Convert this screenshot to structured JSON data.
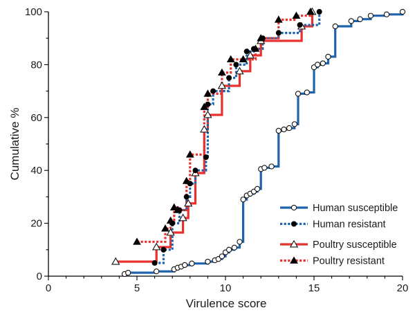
{
  "chart_data": {
    "type": "line",
    "xlabel": "Virulence score",
    "ylabel": "Cumulative %",
    "xlim": [
      0,
      20
    ],
    "ylim": [
      0,
      100
    ],
    "x_ticks": [
      0,
      5,
      10,
      15,
      20
    ],
    "y_ticks": [
      0,
      20,
      40,
      60,
      80,
      100
    ],
    "x_tick_labels": [
      "0",
      "5",
      "10",
      "15",
      "20"
    ],
    "y_tick_labels": [
      "0",
      "20",
      "40",
      "60",
      "80",
      "100"
    ],
    "grid": false,
    "legend_position": "bottom-right",
    "series": [
      {
        "name": "Human susceptible",
        "color": "#1f63ad",
        "line_style": "solid",
        "marker": "open-circle",
        "x": [
          4.3,
          4.5,
          6.1,
          7.1,
          7.3,
          7.5,
          7.7,
          8.1,
          9.0,
          9.4,
          9.6,
          9.8,
          10.0,
          10.2,
          10.5,
          10.8,
          11.0,
          11.2,
          11.4,
          11.6,
          11.8,
          12.0,
          12.2,
          12.6,
          13.0,
          13.3,
          13.6,
          13.9,
          14.1,
          14.6,
          15.0,
          15.2,
          15.5,
          15.8,
          16.2,
          17.1,
          17.6,
          18.2,
          19.1,
          20.0
        ],
        "y": [
          0.8,
          1.3,
          1.8,
          2.6,
          3.2,
          3.6,
          4.2,
          4.8,
          5.5,
          6.0,
          6.5,
          7.5,
          9.0,
          10.0,
          10.8,
          13.0,
          29.0,
          30.5,
          31.2,
          32.0,
          33.0,
          40.5,
          41.0,
          41.5,
          55.0,
          55.5,
          56.0,
          57.5,
          69.0,
          69.5,
          79.0,
          80.0,
          80.5,
          83.0,
          94.5,
          96.5,
          97.2,
          98.5,
          99.0,
          100.0
        ]
      },
      {
        "name": "Human resistant",
        "color": "#1f63ad",
        "line_style": "dotted",
        "marker": "filled-circle",
        "x": [
          6.0,
          6.5,
          7.0,
          7.4,
          7.8,
          8.0,
          8.3,
          8.9,
          9.0,
          9.3,
          10.2,
          10.6,
          11.2,
          11.6,
          12.1,
          13.0,
          14.2,
          15.3
        ],
        "y": [
          5.0,
          10.0,
          20.0,
          25.0,
          30.0,
          35.0,
          40.0,
          45.0,
          65.0,
          70.0,
          75.0,
          80.0,
          85.0,
          86.0,
          90.0,
          92.0,
          95.0,
          100.0
        ]
      },
      {
        "name": "Poultry susceptible",
        "color": "#e8312f",
        "line_style": "solid",
        "marker": "open-triangle",
        "x": [
          3.8,
          6.1,
          6.9,
          7.6,
          7.9,
          8.3,
          8.8,
          9.0,
          9.8,
          10.8,
          11.4,
          12.0,
          14.3,
          14.9
        ],
        "y": [
          5.5,
          11.0,
          16.5,
          22.0,
          27.5,
          39.0,
          55.5,
          61.0,
          72.0,
          77.5,
          83.5,
          89.0,
          94.5,
          100.0
        ]
      },
      {
        "name": "Poultry resistant",
        "color": "#e8312f",
        "line_style": "dotted",
        "marker": "filled-triangle",
        "x": [
          5.0,
          6.6,
          6.9,
          7.1,
          7.3,
          7.8,
          8.0,
          8.8,
          9.0,
          9.8,
          10.3,
          11.0,
          11.7,
          12.0,
          13.0,
          14.0,
          14.8
        ],
        "y": [
          13.0,
          18.0,
          21.0,
          26.0,
          25.0,
          36.0,
          46.0,
          64.0,
          69.0,
          77.0,
          82.0,
          82.0,
          86.0,
          90.0,
          97.0,
          98.5,
          100.0
        ]
      }
    ]
  }
}
